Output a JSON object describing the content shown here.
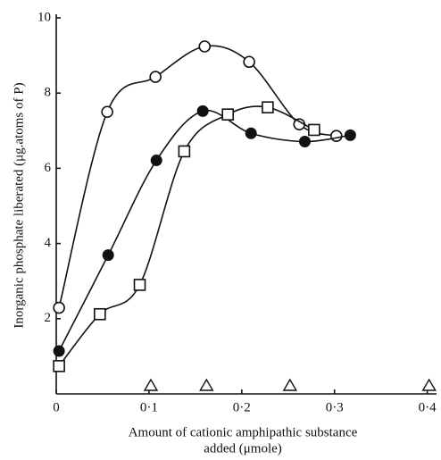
{
  "chart_data": {
    "type": "scatter",
    "xlabel": [
      "Amount of cationic amphipathic substance",
      "added (μmole)"
    ],
    "ylabel": "Inorganic phosphate liberated (μg.atoms of P)",
    "xlim": [
      0,
      0.41
    ],
    "ylim": [
      0,
      10
    ],
    "xticks": [
      0,
      {
        "value": 0.1,
        "label": "0·1"
      },
      {
        "value": 0.2,
        "label": "0·2"
      },
      {
        "value": 0.3,
        "label": "0·3"
      },
      {
        "value": 0.4,
        "label": "0·4"
      }
    ],
    "yticks": [
      2,
      4,
      6,
      8,
      10
    ],
    "series": [
      {
        "marker": "open-circle",
        "line": true,
        "color": "#111",
        "x": [
          0.003,
          0.055,
          0.107,
          0.16,
          0.208,
          0.262,
          0.302
        ],
        "values": [
          2.29,
          7.5,
          8.43,
          9.24,
          8.83,
          7.17,
          6.86
        ]
      },
      {
        "marker": "filled-circle",
        "line": true,
        "color": "#111",
        "x": [
          0.003,
          0.056,
          0.108,
          0.158,
          0.21,
          0.268,
          0.317
        ],
        "values": [
          1.14,
          3.69,
          6.21,
          7.52,
          6.93,
          6.71,
          6.88
        ]
      },
      {
        "marker": "open-square",
        "line": true,
        "color": "#111",
        "x": [
          0.003,
          0.047,
          0.09,
          0.138,
          0.185,
          0.228,
          0.278
        ],
        "values": [
          0.74,
          2.12,
          2.9,
          6.45,
          7.43,
          7.62,
          7.02
        ]
      },
      {
        "marker": "open-triangle",
        "line": false,
        "color": "#111",
        "x": [
          0.102,
          0.162,
          0.252,
          0.402
        ],
        "values": [
          0,
          0,
          0,
          0
        ]
      }
    ]
  }
}
